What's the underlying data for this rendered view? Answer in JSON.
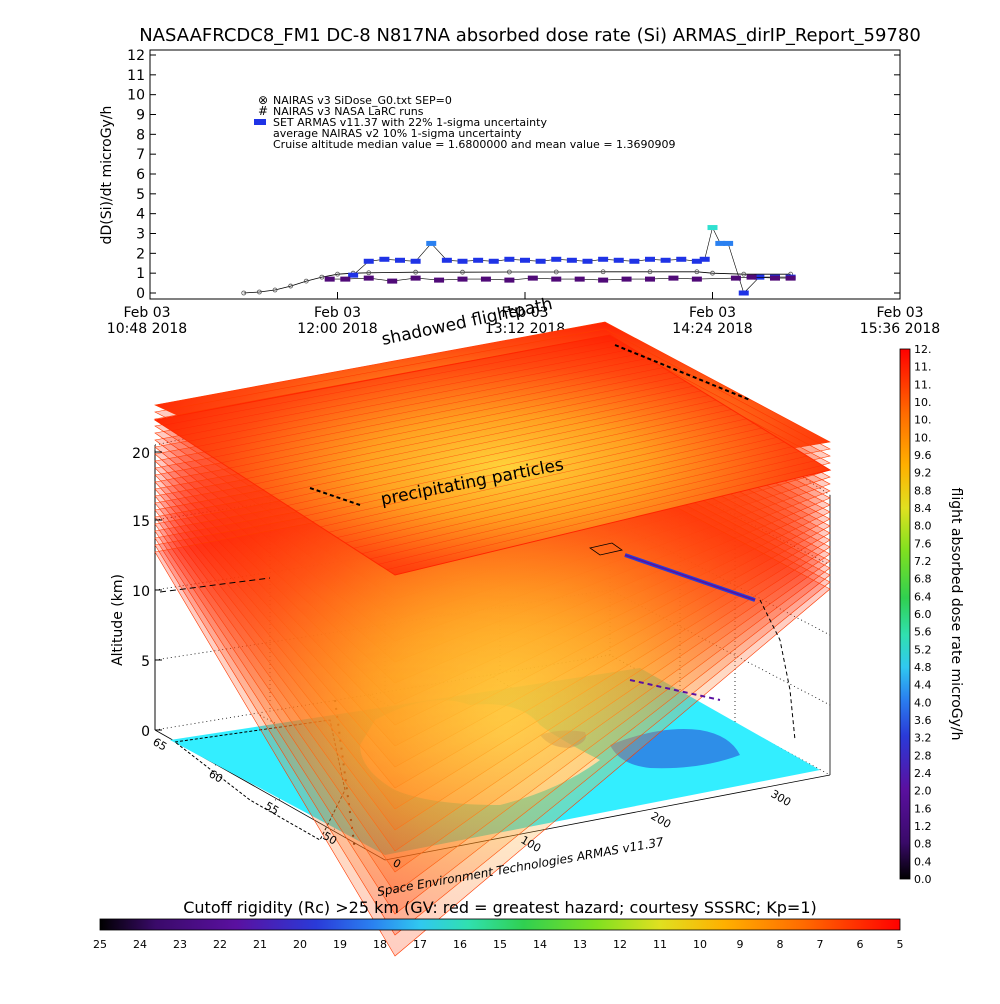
{
  "title": "NASAAFRCDC8_FM1 DC-8    N817NA absorbed dose rate (Si) ARMAS_dirIP_Report_59780",
  "chart_data": [
    {
      "type": "line",
      "ylabel": "dD(Si)/dt microGy/h",
      "ylim": [
        0,
        12
      ],
      "yticks": [
        "0",
        "1",
        "2",
        "3",
        "4",
        "5",
        "6",
        "7",
        "8",
        "9",
        "10",
        "11",
        "12"
      ],
      "xticks": [
        {
          "line1": "Feb 03",
          "line2": "10:48 2018"
        },
        {
          "line1": "Feb 03",
          "line2": "12:00 2018"
        },
        {
          "line1": "Feb 03",
          "line2": "13:12 2018"
        },
        {
          "line1": "Feb 03",
          "line2": "14:24 2018"
        },
        {
          "line1": "Feb 03",
          "line2": "15:36 2018"
        }
      ],
      "xlim_hours": [
        10.8,
        15.6
      ],
      "legend": [
        "NAIRAS v3 SiDose_G0.txt SEP=0",
        "NAIRAS v3 NASA LaRC runs",
        "SET ARMAS v11.37 with 22% 1-sigma uncertainty",
        "average NAIRAS v2 10% 1-sigma uncertainty",
        "Cruise altitude median value = 1.6800000 and mean value = 1.3690909"
      ],
      "series": [
        {
          "name": "NAIRAS v3 SiDose_G0.txt SEP=0",
          "color": "#505050",
          "x": [
            11.4,
            11.5,
            11.6,
            11.7,
            11.8,
            11.9,
            12.0,
            12.1,
            12.2,
            12.5,
            12.8,
            13.1,
            13.4,
            13.7,
            14.0,
            14.3,
            14.4,
            14.6,
            14.9
          ],
          "y": [
            0.0,
            0.05,
            0.15,
            0.35,
            0.6,
            0.8,
            0.95,
            1.0,
            1.02,
            1.05,
            1.05,
            1.06,
            1.06,
            1.07,
            1.07,
            1.07,
            1.0,
            0.95,
            0.95
          ]
        },
        {
          "name": "SET ARMAS v11.37 with 22% 1-sigma uncertainty",
          "color": "#1f33e6",
          "x": [
            12.1,
            12.2,
            12.3,
            12.4,
            12.5,
            12.6,
            12.7,
            12.8,
            12.9,
            13.0,
            13.1,
            13.2,
            13.3,
            13.4,
            13.5,
            13.6,
            13.7,
            13.8,
            13.9,
            14.0,
            14.1,
            14.2,
            14.3,
            14.35,
            14.4,
            14.45,
            14.5,
            14.6,
            14.7,
            14.8,
            14.9
          ],
          "y": [
            0.9,
            1.6,
            1.7,
            1.65,
            1.6,
            2.5,
            1.65,
            1.6,
            1.65,
            1.6,
            1.7,
            1.65,
            1.6,
            1.7,
            1.65,
            1.6,
            1.7,
            1.65,
            1.6,
            1.7,
            1.65,
            1.7,
            1.6,
            1.7,
            3.3,
            2.5,
            2.5,
            0.0,
            0.8,
            0.8,
            0.8
          ]
        },
        {
          "name": "average NAIRAS v2 10% 1-sigma uncertainty",
          "color": "#500a78",
          "x": [
            11.95,
            12.05,
            12.2,
            12.35,
            12.5,
            12.65,
            12.8,
            12.95,
            13.1,
            13.25,
            13.4,
            13.55,
            13.7,
            13.85,
            14.0,
            14.15,
            14.3,
            14.55,
            14.65,
            14.8,
            14.9
          ],
          "y": [
            0.7,
            0.7,
            0.75,
            0.6,
            0.75,
            0.65,
            0.7,
            0.7,
            0.65,
            0.75,
            0.7,
            0.7,
            0.65,
            0.7,
            0.7,
            0.75,
            0.7,
            0.75,
            0.8,
            0.75,
            0.75
          ]
        }
      ]
    },
    {
      "type": "heatmap",
      "ylabel": "Altitude (km)",
      "zticks": [
        "0",
        "5",
        "10",
        "15",
        "20"
      ],
      "lat_ticks": [
        "50",
        "55",
        "60",
        "65"
      ],
      "lon_ticks": [
        "0",
        "100",
        "200",
        "300"
      ],
      "annotations": [
        "shadowed flightpath",
        "precipitating particles"
      ],
      "credit": "Space Environment Technologies ARMAS v11.37",
      "colorbar": {
        "label": "flight absorbed dose rate microGy/h",
        "ticks": [
          "0.0",
          "0.4",
          "0.8",
          "1.2",
          "1.6",
          "2.0",
          "2.4",
          "2.8",
          "3.2",
          "3.6",
          "4.0",
          "4.4",
          "4.8",
          "5.2",
          "5.6",
          "6.0",
          "6.4",
          "6.8",
          "7.2",
          "7.6",
          "8.0",
          "8.4",
          "8.8",
          "9.2",
          "9.6",
          "10.",
          "10.",
          "10.",
          "11.",
          "11.",
          "12."
        ]
      }
    },
    {
      "type": "heatmap",
      "title": "Cutoff rigidity (Rc) >25 km (GV: red = greatest hazard; courtesy SSSRC; Kp=1)",
      "ticks": [
        "25",
        "24",
        "23",
        "22",
        "21",
        "20",
        "19",
        "18",
        "17",
        "16",
        "15",
        "14",
        "13",
        "12",
        "11",
        "10",
        "9",
        "8",
        "7",
        "6",
        "5"
      ]
    }
  ],
  "colors": {
    "sea": "#33eeff",
    "land": "#ffffff",
    "ridge": "#2a3fd6",
    "scale": [
      "#000000",
      "#3a0a6a",
      "#5a10a0",
      "#2a3ad8",
      "#2a80f0",
      "#30c8f0",
      "#30e0b0",
      "#30d050",
      "#80e020",
      "#e0e020",
      "#ffb000",
      "#ff6a00",
      "#ff0000"
    ]
  }
}
